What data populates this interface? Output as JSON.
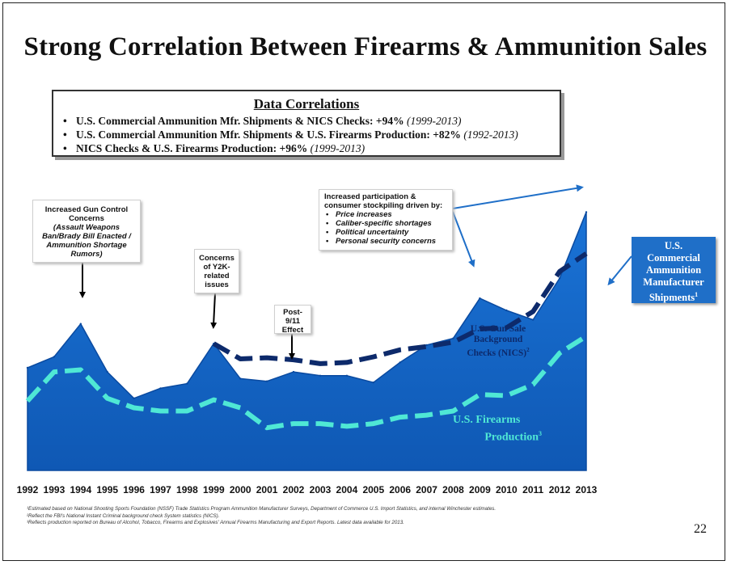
{
  "slide": {
    "title": "Strong Correlation Between Firearms & Ammunition Sales",
    "page_number": "22"
  },
  "correlations": {
    "title": "Data Correlations",
    "items": [
      {
        "text": "U.S. Commercial Ammunition Mfr. Shipments & NICS Checks: +94%",
        "period": "(1999-2013)"
      },
      {
        "text": "U.S. Commercial Ammunition Mfr. Shipments & U.S. Firearms Production: +82%",
        "period": "(1992-2013)"
      },
      {
        "text": "NICS Checks & U.S. Firearms Production:  +96%",
        "period": "(1999-2013)"
      }
    ]
  },
  "callouts": {
    "gun_control": {
      "line1": "Increased Gun Control",
      "line2": "Concerns",
      "sub1": "(Assault Weapons",
      "sub2": "Ban/Brady Bill Enacted /",
      "sub3": "Ammunition Shortage",
      "sub4": "Rumors)"
    },
    "y2k": {
      "line1": "Concerns",
      "line2": "of Y2K-",
      "line3": "related",
      "line4": "issues"
    },
    "post911": {
      "line1": "Post-",
      "line2": "9/11",
      "line3": "Effect"
    },
    "stockpiling": {
      "line1": "Increased participation &",
      "line2": "consumer stockpiling driven by:",
      "items": [
        "Price increases",
        "Caliber-specific shortages",
        "Political uncertainty",
        "Personal security concerns"
      ]
    }
  },
  "labels": {
    "shipments_line1": "U.S.",
    "shipments_line2": "Commercial",
    "shipments_line3": "Ammunition",
    "shipments_line4": "Manufacturer",
    "shipments_line5": "Shipments",
    "shipments_sup": "1",
    "nics_line1": "U.S. Gun Sale",
    "nics_line2": "Background",
    "nics_line3": "Checks (NICS)",
    "nics_sup": "2",
    "production_line1": "U.S. Firearms",
    "production_line2": "Production",
    "production_sup": "3"
  },
  "footnotes": [
    "¹Estimated based on National Shooting Sports Foundation (NSSF) Trade Statistics Program Ammunition Manufacturer Surveys, Department of Commerce U.S. Import Statistics, and internal Winchester estimates.",
    "²Reflect the FBI's National Instant Criminal background check System statistics (NICS).",
    "³Reflects production reported on Bureau of Alcohol, Tobacco, Firearms and Explosives' Annual Firearms Manufacturing and Export Reports.  Latest data available for 2013."
  ],
  "colors": {
    "area_fill": "#1565c8",
    "area_fill_dark": "#0a4aa0",
    "nics_line": "#0d2a6b",
    "production_line": "#4fe8d5",
    "box_blue": "#1f6fc8"
  },
  "chart_data": {
    "type": "area",
    "categories": [
      "1992",
      "1993",
      "1994",
      "1995",
      "1996",
      "1997",
      "1998",
      "1999",
      "2000",
      "2001",
      "2002",
      "2003",
      "2004",
      "2005",
      "2006",
      "2007",
      "2008",
      "2009",
      "2010",
      "2011",
      "2012",
      "2013"
    ],
    "ylim": [
      0,
      100
    ],
    "series": [
      {
        "name": "U.S. Commercial Ammunition Manufacturer Shipments",
        "style": "area",
        "values": [
          34.9,
          38.6,
          49.8,
          33.5,
          24.5,
          27.9,
          29.5,
          43.1,
          31.2,
          30.3,
          33.5,
          32.2,
          32.2,
          29.9,
          36.7,
          42.6,
          44.9,
          58.5,
          54.4,
          51.2,
          65.3,
          87.8
        ]
      },
      {
        "name": "U.S. Gun Sale Background Checks (NICS)",
        "style": "dashed",
        "values": [
          null,
          null,
          null,
          null,
          null,
          null,
          null,
          43.1,
          37.9,
          38.3,
          37.6,
          36.3,
          36.7,
          38.6,
          41.0,
          42.1,
          43.6,
          48.1,
          48.5,
          54.0,
          67.6,
          73.7
        ]
      },
      {
        "name": "U.S. Firearms Production",
        "style": "dashed",
        "values": [
          23.6,
          33.5,
          34.2,
          24.5,
          21.3,
          20.2,
          20.2,
          24.0,
          21.3,
          14.5,
          15.9,
          15.9,
          15.0,
          15.9,
          18.1,
          18.8,
          20.2,
          25.8,
          25.4,
          29.2,
          39.9,
          45.6
        ]
      }
    ]
  }
}
